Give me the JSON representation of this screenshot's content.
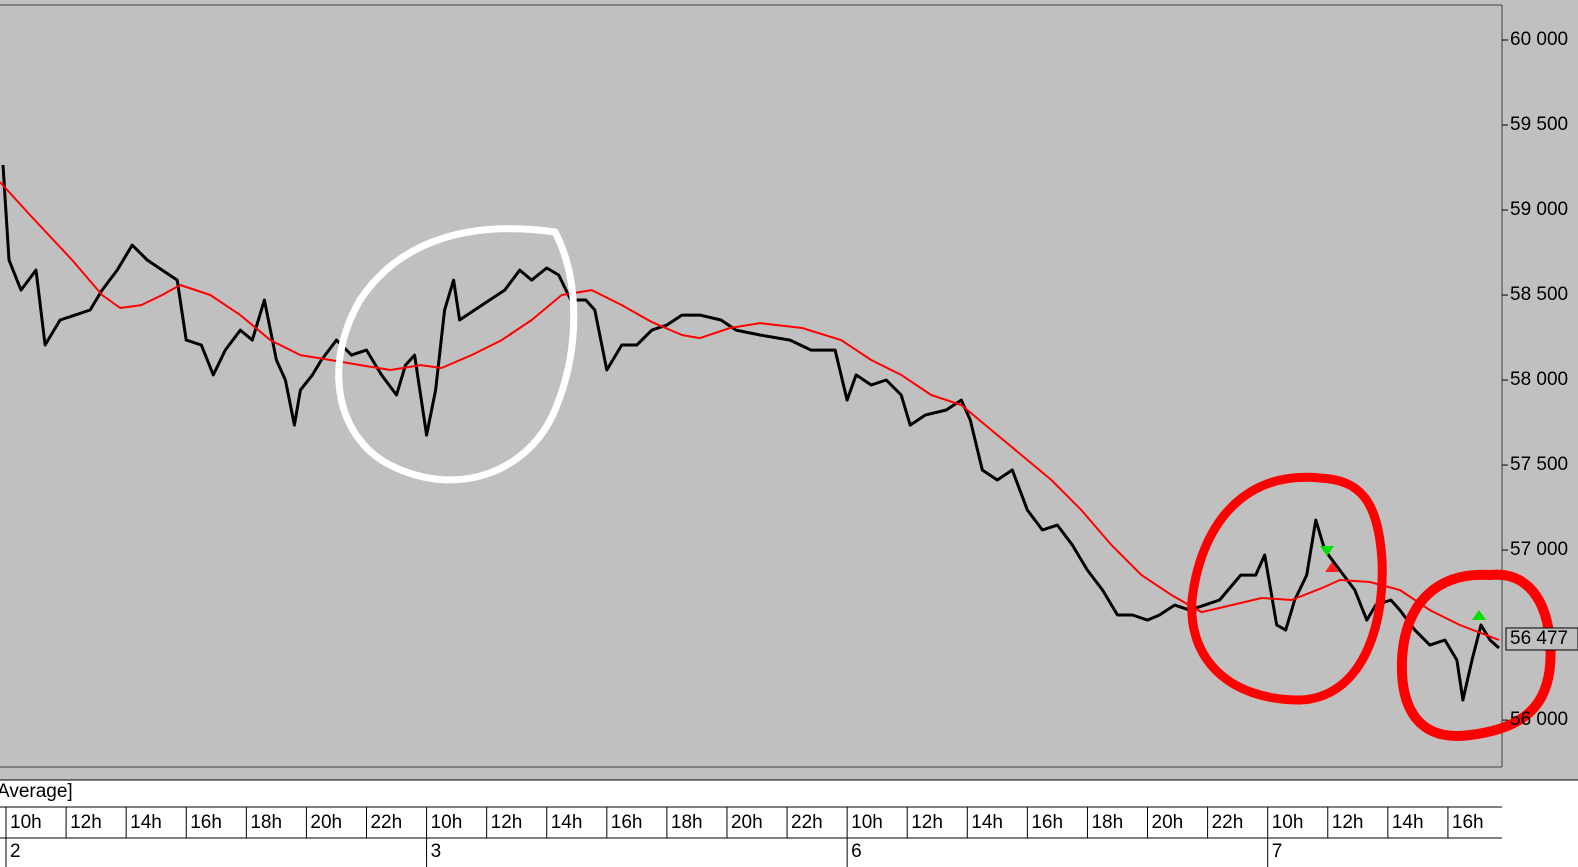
{
  "chart_data": {
    "type": "line",
    "legend_text": "Average]",
    "xlim": [
      -0.2,
      49.8
    ],
    "xticks": [
      {
        "value": 0,
        "label": "10h"
      },
      {
        "value": 2,
        "label": "12h"
      },
      {
        "value": 4,
        "label": "14h"
      },
      {
        "value": 6,
        "label": "16h"
      },
      {
        "value": 8,
        "label": "18h"
      },
      {
        "value": 10,
        "label": "20h"
      },
      {
        "value": 12,
        "label": "22h"
      },
      {
        "value": 14,
        "label": "10h"
      },
      {
        "value": 16,
        "label": "12h"
      },
      {
        "value": 18,
        "label": "14h"
      },
      {
        "value": 20,
        "label": "16h"
      },
      {
        "value": 22,
        "label": "18h"
      },
      {
        "value": 24,
        "label": "20h"
      },
      {
        "value": 26,
        "label": "22h"
      },
      {
        "value": 28,
        "label": "10h"
      },
      {
        "value": 30,
        "label": "12h"
      },
      {
        "value": 32,
        "label": "14h"
      },
      {
        "value": 34,
        "label": "16h"
      },
      {
        "value": 36,
        "label": "18h"
      },
      {
        "value": 38,
        "label": "20h"
      },
      {
        "value": 40,
        "label": "22h"
      },
      {
        "value": 42,
        "label": "10h"
      },
      {
        "value": 44,
        "label": "12h"
      },
      {
        "value": 46,
        "label": "14h"
      },
      {
        "value": 48,
        "label": "16h"
      }
    ],
    "day_ticks": [
      {
        "value": 0,
        "label": "2"
      },
      {
        "value": 14,
        "label": "3"
      },
      {
        "value": 28,
        "label": "6"
      },
      {
        "value": 42,
        "label": "7"
      }
    ],
    "ylim": [
      55724,
      60206
    ],
    "yticks": [
      {
        "value": 56000,
        "label": "56 000"
      },
      {
        "value": 57000,
        "label": "57 000"
      },
      {
        "value": 57500,
        "label": "57 500"
      },
      {
        "value": 58000,
        "label": "58 000"
      },
      {
        "value": 58500,
        "label": "58 500"
      },
      {
        "value": 59000,
        "label": "59 000"
      },
      {
        "value": 59500,
        "label": "59 500"
      },
      {
        "value": 60000,
        "label": "60 000"
      }
    ],
    "last_price": {
      "value": 56477,
      "label": "56 477"
    },
    "series": [
      {
        "color": "#000000",
        "x": [
          -0.1,
          0.1,
          0.5,
          1.0,
          1.3,
          1.8,
          2.3,
          2.8,
          3.2,
          3.7,
          4.2,
          4.7,
          5.2,
          5.7,
          6.0,
          6.5,
          6.9,
          7.3,
          7.8,
          8.2,
          8.6,
          9.0,
          9.3,
          9.6,
          9.8,
          10.2,
          10.5,
          11.0,
          11.5,
          12.0,
          12.5,
          13.0,
          13.3,
          13.6,
          14.0,
          14.3,
          14.6,
          14.9,
          15.1,
          15.6,
          16.1,
          16.6,
          17.1,
          17.5,
          18.0,
          18.4,
          18.8,
          19.3,
          19.6,
          20.0,
          20.5,
          21.0,
          21.5,
          22.0,
          22.5,
          23.1,
          23.8,
          24.3,
          25.1,
          26.1,
          26.8,
          27.6,
          28.0,
          28.3,
          28.8,
          29.3,
          29.8,
          30.1,
          30.6,
          31.3,
          31.8,
          32.1,
          32.5,
          33.0,
          33.5,
          34.0,
          34.5,
          35.0,
          35.5,
          36.0,
          36.5,
          37.0,
          37.5,
          38.0,
          38.4,
          38.9,
          39.4,
          39.9,
          40.4,
          41.1,
          41.6,
          41.9,
          42.3,
          42.6,
          42.9,
          43.3,
          43.6,
          43.9,
          44.4,
          44.9,
          45.3,
          45.6,
          46.1,
          46.4,
          46.9,
          47.4,
          47.9,
          48.3,
          48.5,
          48.8,
          49.1,
          49.4,
          49.7
        ],
        "values": [
          59265,
          58706,
          58529,
          58647,
          58206,
          58353,
          58382,
          58412,
          58529,
          58647,
          58794,
          58706,
          58647,
          58588,
          58235,
          58206,
          58030,
          58176,
          58294,
          58235,
          58471,
          58118,
          58000,
          57735,
          57941,
          58030,
          58118,
          58235,
          58147,
          58176,
          58030,
          57912,
          58088,
          58147,
          57676,
          57941,
          58412,
          58588,
          58353,
          58412,
          58471,
          58529,
          58647,
          58588,
          58659,
          58618,
          58471,
          58471,
          58412,
          58059,
          58206,
          58206,
          58294,
          58324,
          58382,
          58382,
          58353,
          58294,
          58265,
          58235,
          58176,
          58176,
          57882,
          58030,
          57971,
          58000,
          57912,
          57735,
          57794,
          57824,
          57882,
          57765,
          57471,
          57412,
          57471,
          57235,
          57118,
          57147,
          57029,
          56882,
          56765,
          56618,
          56618,
          56588,
          56618,
          56676,
          56647,
          56676,
          56706,
          56853,
          56853,
          56971,
          56559,
          56529,
          56706,
          56853,
          57176,
          57000,
          56882,
          56765,
          56588,
          56676,
          56706,
          56647,
          56529,
          56441,
          56471,
          56353,
          56118,
          56353,
          56559,
          56471,
          56424
        ]
      },
      {
        "color": "#ff0000",
        "x": [
          -0.2,
          0.8,
          2.2,
          3.2,
          3.8,
          4.5,
          5.2,
          5.8,
          6.8,
          7.8,
          8.8,
          9.8,
          10.8,
          11.8,
          12.8,
          13.8,
          14.5,
          15.5,
          16.5,
          17.5,
          18.5,
          19.5,
          20.5,
          21.5,
          22.5,
          23.1,
          24.1,
          25.1,
          26.5,
          27.8,
          28.8,
          29.8,
          30.8,
          31.8,
          32.8,
          33.8,
          34.8,
          35.8,
          36.8,
          37.8,
          38.8,
          39.8,
          40.8,
          41.8,
          42.8,
          43.8,
          44.4,
          45.4,
          46.4,
          47.4,
          48.4,
          49.7
        ],
        "values": [
          59165,
          58971,
          58706,
          58500,
          58424,
          58441,
          58500,
          58559,
          58500,
          58382,
          58235,
          58147,
          58118,
          58088,
          58059,
          58088,
          58071,
          58147,
          58235,
          58353,
          58500,
          58529,
          58441,
          58341,
          58265,
          58247,
          58306,
          58335,
          58306,
          58235,
          58118,
          58030,
          57912,
          57853,
          57706,
          57559,
          57412,
          57235,
          57029,
          56853,
          56735,
          56635,
          56676,
          56718,
          56706,
          56776,
          56824,
          56812,
          56765,
          56647,
          56559,
          56471
        ]
      }
    ]
  }
}
